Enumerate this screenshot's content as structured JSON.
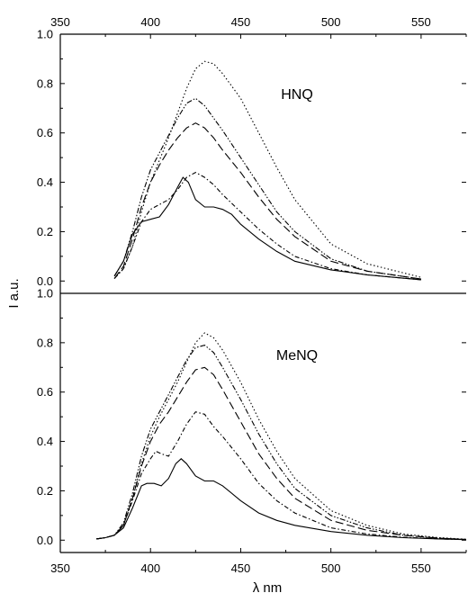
{
  "chart_data": [
    {
      "type": "line",
      "panel": "top",
      "label": "HNQ",
      "xlabel": "",
      "ylabel": "I a.u.",
      "xlim": [
        350,
        575
      ],
      "ylim": [
        -0.05,
        1.0
      ],
      "x_ticks": [
        350,
        400,
        450,
        500,
        550
      ],
      "y_ticks": [
        0.0,
        0.2,
        0.4,
        0.6,
        0.8,
        1.0
      ],
      "x_tick_position": "top",
      "series": [
        {
          "style": "solid",
          "x": [
            380,
            385,
            390,
            395,
            400,
            405,
            410,
            415,
            418,
            421,
            425,
            430,
            435,
            440,
            445,
            450,
            460,
            470,
            480,
            500,
            520,
            550
          ],
          "y": [
            0.02,
            0.08,
            0.19,
            0.24,
            0.25,
            0.26,
            0.31,
            0.38,
            0.42,
            0.4,
            0.33,
            0.3,
            0.3,
            0.29,
            0.27,
            0.23,
            0.17,
            0.12,
            0.08,
            0.045,
            0.025,
            0.005
          ]
        },
        {
          "style": "dash-dot",
          "x": [
            380,
            385,
            390,
            395,
            400,
            405,
            410,
            415,
            420,
            425,
            430,
            435,
            440,
            450,
            460,
            470,
            480,
            500,
            520,
            550
          ],
          "y": [
            0.01,
            0.05,
            0.14,
            0.24,
            0.29,
            0.31,
            0.33,
            0.37,
            0.42,
            0.44,
            0.42,
            0.39,
            0.35,
            0.28,
            0.21,
            0.15,
            0.1,
            0.05,
            0.025,
            0.005
          ]
        },
        {
          "style": "long-dash",
          "x": [
            380,
            385,
            390,
            395,
            400,
            405,
            410,
            415,
            420,
            425,
            430,
            435,
            440,
            450,
            460,
            470,
            480,
            500,
            520,
            550
          ],
          "y": [
            0.01,
            0.06,
            0.17,
            0.3,
            0.4,
            0.47,
            0.53,
            0.58,
            0.62,
            0.64,
            0.62,
            0.58,
            0.53,
            0.44,
            0.34,
            0.25,
            0.18,
            0.08,
            0.04,
            0.008
          ]
        },
        {
          "style": "dash-dot-dot",
          "x": [
            380,
            385,
            390,
            395,
            400,
            405,
            410,
            415,
            420,
            425,
            430,
            435,
            440,
            450,
            460,
            470,
            480,
            500,
            520,
            550
          ],
          "y": [
            0.02,
            0.08,
            0.2,
            0.34,
            0.45,
            0.52,
            0.59,
            0.66,
            0.72,
            0.74,
            0.71,
            0.66,
            0.61,
            0.5,
            0.39,
            0.28,
            0.2,
            0.09,
            0.04,
            0.008
          ]
        },
        {
          "style": "dotted",
          "x": [
            380,
            385,
            390,
            395,
            400,
            405,
            410,
            415,
            420,
            425,
            430,
            435,
            440,
            450,
            460,
            470,
            480,
            500,
            520,
            550
          ],
          "y": [
            0.01,
            0.05,
            0.14,
            0.28,
            0.4,
            0.49,
            0.58,
            0.68,
            0.78,
            0.86,
            0.89,
            0.88,
            0.84,
            0.74,
            0.6,
            0.46,
            0.33,
            0.15,
            0.07,
            0.015
          ]
        }
      ]
    },
    {
      "type": "line",
      "panel": "bottom",
      "label": "MeNQ",
      "xlabel": "λ nm",
      "ylabel": "I a.u.",
      "xlim": [
        350,
        575
      ],
      "ylim": [
        -0.05,
        1.0
      ],
      "x_ticks": [
        350,
        400,
        450,
        500,
        550
      ],
      "y_ticks": [
        0.0,
        0.2,
        0.4,
        0.6,
        0.8,
        1.0
      ],
      "x_tick_position": "bottom",
      "series": [
        {
          "style": "solid",
          "x": [
            370,
            375,
            380,
            385,
            390,
            395,
            398,
            402,
            406,
            410,
            414,
            417,
            420,
            425,
            430,
            435,
            440,
            450,
            460,
            470,
            480,
            500,
            520,
            540,
            560,
            575
          ],
          "y": [
            0.005,
            0.01,
            0.02,
            0.05,
            0.13,
            0.22,
            0.23,
            0.23,
            0.22,
            0.25,
            0.31,
            0.33,
            0.31,
            0.26,
            0.24,
            0.24,
            0.22,
            0.16,
            0.11,
            0.08,
            0.06,
            0.035,
            0.02,
            0.01,
            0.005,
            0.002
          ]
        },
        {
          "style": "dash-dot",
          "x": [
            370,
            375,
            380,
            385,
            390,
            395,
            400,
            403,
            406,
            410,
            415,
            420,
            425,
            430,
            435,
            440,
            450,
            460,
            470,
            480,
            500,
            520,
            540,
            560,
            575
          ],
          "y": [
            0.005,
            0.01,
            0.02,
            0.06,
            0.16,
            0.27,
            0.33,
            0.36,
            0.35,
            0.34,
            0.4,
            0.47,
            0.52,
            0.51,
            0.46,
            0.42,
            0.33,
            0.23,
            0.16,
            0.11,
            0.05,
            0.025,
            0.012,
            0.005,
            0.002
          ]
        },
        {
          "style": "long-dash",
          "x": [
            370,
            375,
            380,
            385,
            390,
            395,
            400,
            405,
            410,
            415,
            420,
            425,
            430,
            435,
            440,
            450,
            460,
            470,
            480,
            500,
            520,
            540,
            560,
            575
          ],
          "y": [
            0.005,
            0.01,
            0.02,
            0.06,
            0.17,
            0.3,
            0.4,
            0.47,
            0.52,
            0.58,
            0.64,
            0.69,
            0.7,
            0.67,
            0.61,
            0.48,
            0.35,
            0.25,
            0.17,
            0.08,
            0.04,
            0.02,
            0.008,
            0.003
          ]
        },
        {
          "style": "dash-dot-dot",
          "x": [
            370,
            375,
            380,
            385,
            390,
            395,
            400,
            405,
            410,
            415,
            420,
            425,
            430,
            435,
            440,
            450,
            460,
            470,
            480,
            500,
            520,
            540,
            560,
            575
          ],
          "y": [
            0.005,
            0.01,
            0.02,
            0.07,
            0.19,
            0.34,
            0.45,
            0.52,
            0.59,
            0.66,
            0.73,
            0.78,
            0.79,
            0.76,
            0.7,
            0.57,
            0.43,
            0.31,
            0.21,
            0.1,
            0.05,
            0.02,
            0.008,
            0.003
          ]
        },
        {
          "style": "dotted",
          "x": [
            370,
            375,
            380,
            385,
            390,
            395,
            400,
            405,
            410,
            415,
            420,
            425,
            430,
            435,
            440,
            450,
            460,
            470,
            480,
            500,
            520,
            540,
            560,
            575
          ],
          "y": [
            0.005,
            0.01,
            0.02,
            0.06,
            0.17,
            0.31,
            0.42,
            0.5,
            0.57,
            0.64,
            0.72,
            0.8,
            0.84,
            0.82,
            0.77,
            0.64,
            0.49,
            0.36,
            0.25,
            0.12,
            0.06,
            0.025,
            0.01,
            0.004
          ]
        }
      ]
    }
  ]
}
